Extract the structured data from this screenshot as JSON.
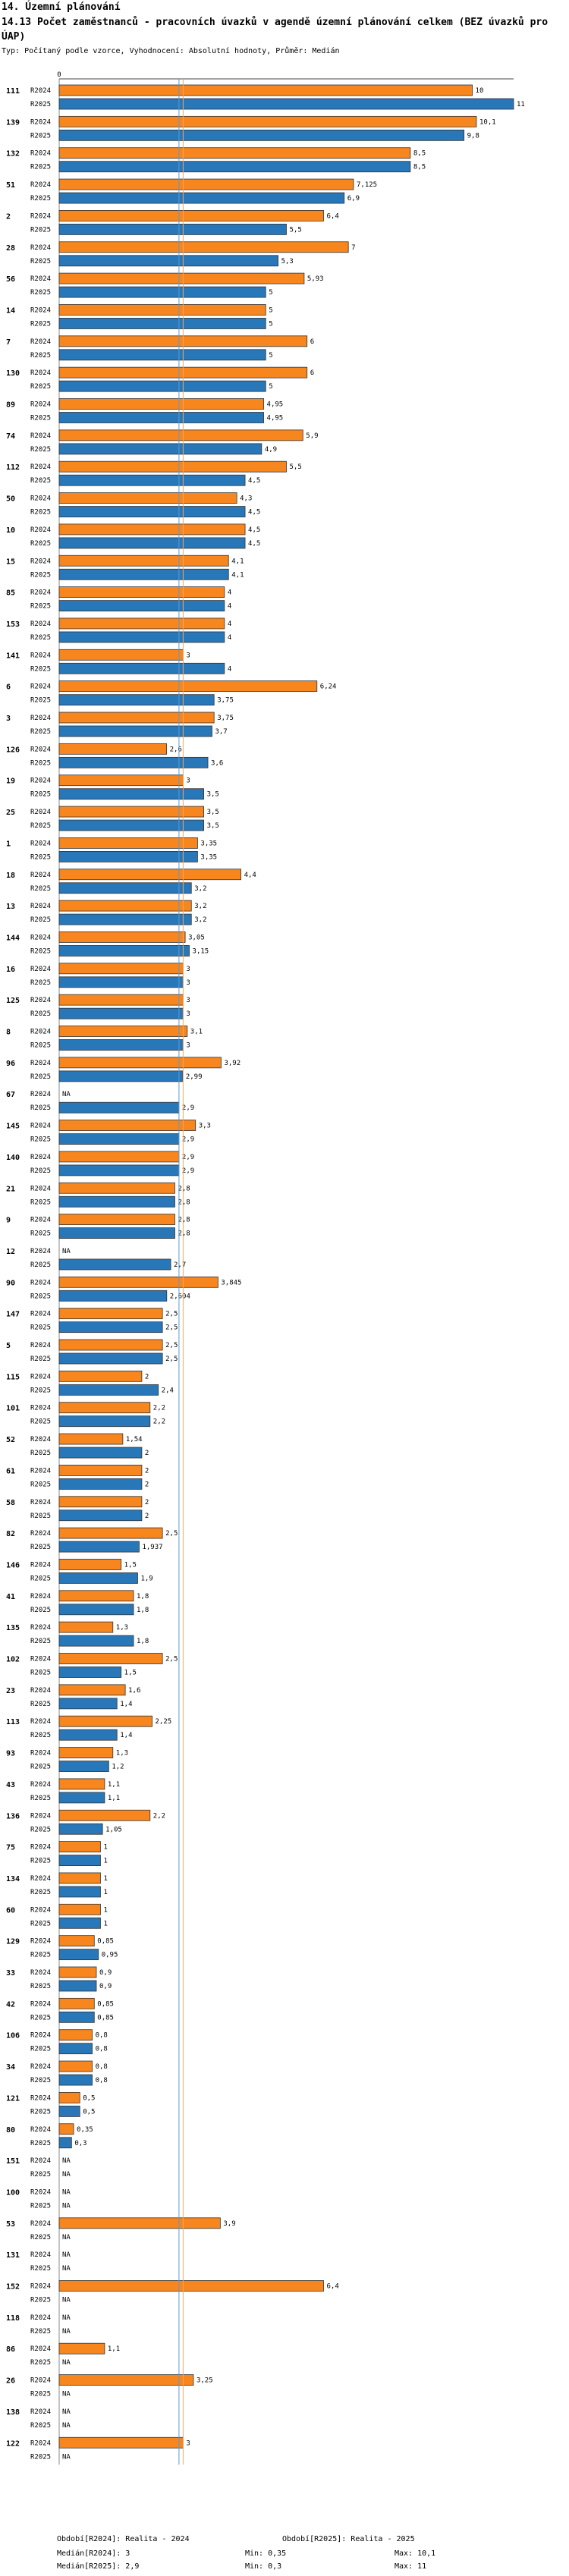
{
  "header": {
    "section": "14. Územní plánování",
    "title": "14.13 Počet zaměstnanců - pracovních úvazků v agendě územní plánování celkem (BEZ úvazků pro ÚAP)",
    "type_line": "Typ: Počítaný podle vzorce, Vyhodnocení: Absolutní hodnoty, Průměr: Medián"
  },
  "legend": {
    "r2024": "Období[R2024]: Realita - 2024",
    "r2025": "Období[R2025]: Realita - 2025"
  },
  "stats": {
    "median_2024": "Medián[R2024]: 3",
    "median_2025": "Medián[R2025]: 2,9",
    "min_2024": "Min: 0,35",
    "min_2025": "Min: 0,3",
    "max_2024": "Max: 10,1",
    "max_2025": "Max: 11"
  },
  "colors": {
    "r2024": "#f7861e",
    "r2025": "#2877b8",
    "median2024": "#f7a65a",
    "median2025": "#5b9bd5"
  },
  "chart_data": {
    "type": "bar",
    "orientation": "horizontal",
    "axis_min": 0,
    "axis_max": 11,
    "axis_tick_label": "0",
    "median_2024": 3,
    "median_2025": 2.9,
    "series_names": [
      "R2024",
      "R2025"
    ],
    "rows": [
      {
        "id": "111",
        "v2024": 10,
        "l2024": "10",
        "v2025": 11,
        "l2025": "11"
      },
      {
        "id": "139",
        "v2024": 10.1,
        "l2024": "10,1",
        "v2025": 9.8,
        "l2025": "9,8"
      },
      {
        "id": "132",
        "v2024": 8.5,
        "l2024": "8,5",
        "v2025": 8.5,
        "l2025": "8,5"
      },
      {
        "id": "51",
        "v2024": 7.125,
        "l2024": "7,125",
        "v2025": 6.9,
        "l2025": "6,9"
      },
      {
        "id": "2",
        "v2024": 6.4,
        "l2024": "6,4",
        "v2025": 5.5,
        "l2025": "5,5"
      },
      {
        "id": "28",
        "v2024": 7,
        "l2024": "7",
        "v2025": 5.3,
        "l2025": "5,3"
      },
      {
        "id": "56",
        "v2024": 5.93,
        "l2024": "5,93",
        "v2025": 5,
        "l2025": "5"
      },
      {
        "id": "14",
        "v2024": 5,
        "l2024": "5",
        "v2025": 5,
        "l2025": "5"
      },
      {
        "id": "7",
        "v2024": 6,
        "l2024": "6",
        "v2025": 5,
        "l2025": "5"
      },
      {
        "id": "130",
        "v2024": 6,
        "l2024": "6",
        "v2025": 5,
        "l2025": "5"
      },
      {
        "id": "89",
        "v2024": 4.95,
        "l2024": "4,95",
        "v2025": 4.95,
        "l2025": "4,95"
      },
      {
        "id": "74",
        "v2024": 5.9,
        "l2024": "5,9",
        "v2025": 4.9,
        "l2025": "4,9"
      },
      {
        "id": "112",
        "v2024": 5.5,
        "l2024": "5,5",
        "v2025": 4.5,
        "l2025": "4,5"
      },
      {
        "id": "50",
        "v2024": 4.3,
        "l2024": "4,3",
        "v2025": 4.5,
        "l2025": "4,5"
      },
      {
        "id": "10",
        "v2024": 4.5,
        "l2024": "4,5",
        "v2025": 4.5,
        "l2025": "4,5"
      },
      {
        "id": "15",
        "v2024": 4.1,
        "l2024": "4,1",
        "v2025": 4.1,
        "l2025": "4,1"
      },
      {
        "id": "85",
        "v2024": 4,
        "l2024": "4",
        "v2025": 4,
        "l2025": "4"
      },
      {
        "id": "153",
        "v2024": 4,
        "l2024": "4",
        "v2025": 4,
        "l2025": "4"
      },
      {
        "id": "141",
        "v2024": 3,
        "l2024": "3",
        "v2025": 4,
        "l2025": "4"
      },
      {
        "id": "6",
        "v2024": 6.24,
        "l2024": "6,24",
        "v2025": 3.75,
        "l2025": "3,75"
      },
      {
        "id": "3",
        "v2024": 3.75,
        "l2024": "3,75",
        "v2025": 3.7,
        "l2025": "3,7"
      },
      {
        "id": "126",
        "v2024": 2.6,
        "l2024": "2,6",
        "v2025": 3.6,
        "l2025": "3,6"
      },
      {
        "id": "19",
        "v2024": 3,
        "l2024": "3",
        "v2025": 3.5,
        "l2025": "3,5"
      },
      {
        "id": "25",
        "v2024": 3.5,
        "l2024": "3,5",
        "v2025": 3.5,
        "l2025": "3,5"
      },
      {
        "id": "1",
        "v2024": 3.35,
        "l2024": "3,35",
        "v2025": 3.35,
        "l2025": "3,35"
      },
      {
        "id": "18",
        "v2024": 4.4,
        "l2024": "4,4",
        "v2025": 3.2,
        "l2025": "3,2"
      },
      {
        "id": "13",
        "v2024": 3.2,
        "l2024": "3,2",
        "v2025": 3.2,
        "l2025": "3,2"
      },
      {
        "id": "144",
        "v2024": 3.05,
        "l2024": "3,05",
        "v2025": 3.15,
        "l2025": "3,15"
      },
      {
        "id": "16",
        "v2024": 3,
        "l2024": "3",
        "v2025": 3,
        "l2025": "3"
      },
      {
        "id": "125",
        "v2024": 3,
        "l2024": "3",
        "v2025": 3,
        "l2025": "3"
      },
      {
        "id": "8",
        "v2024": 3.1,
        "l2024": "3,1",
        "v2025": 3,
        "l2025": "3"
      },
      {
        "id": "96",
        "v2024": 3.92,
        "l2024": "3,92",
        "v2025": 2.99,
        "l2025": "2,99"
      },
      {
        "id": "67",
        "v2024": null,
        "l2024": "NA",
        "v2025": 2.9,
        "l2025": "2,9"
      },
      {
        "id": "145",
        "v2024": 3.3,
        "l2024": "3,3",
        "v2025": 2.9,
        "l2025": "2,9"
      },
      {
        "id": "140",
        "v2024": 2.9,
        "l2024": "2,9",
        "v2025": 2.9,
        "l2025": "2,9"
      },
      {
        "id": "21",
        "v2024": 2.8,
        "l2024": "2,8",
        "v2025": 2.8,
        "l2025": "2,8"
      },
      {
        "id": "9",
        "v2024": 2.8,
        "l2024": "2,8",
        "v2025": 2.8,
        "l2025": "2,8"
      },
      {
        "id": "12",
        "v2024": null,
        "l2024": "NA",
        "v2025": 2.7,
        "l2025": "2,7"
      },
      {
        "id": "90",
        "v2024": 3.845,
        "l2024": "3,845",
        "v2025": 2.604,
        "l2025": "2,604"
      },
      {
        "id": "147",
        "v2024": 2.5,
        "l2024": "2,5",
        "v2025": 2.5,
        "l2025": "2,5"
      },
      {
        "id": "5",
        "v2024": 2.5,
        "l2024": "2,5",
        "v2025": 2.5,
        "l2025": "2,5"
      },
      {
        "id": "115",
        "v2024": 2,
        "l2024": "2",
        "v2025": 2.4,
        "l2025": "2,4"
      },
      {
        "id": "101",
        "v2024": 2.2,
        "l2024": "2,2",
        "v2025": 2.2,
        "l2025": "2,2"
      },
      {
        "id": "52",
        "v2024": 1.54,
        "l2024": "1,54",
        "v2025": 2,
        "l2025": "2"
      },
      {
        "id": "61",
        "v2024": 2,
        "l2024": "2",
        "v2025": 2,
        "l2025": "2"
      },
      {
        "id": "58",
        "v2024": 2,
        "l2024": "2",
        "v2025": 2,
        "l2025": "2"
      },
      {
        "id": "82",
        "v2024": 2.5,
        "l2024": "2,5",
        "v2025": 1.937,
        "l2025": "1,937"
      },
      {
        "id": "146",
        "v2024": 1.5,
        "l2024": "1,5",
        "v2025": 1.9,
        "l2025": "1,9"
      },
      {
        "id": "41",
        "v2024": 1.8,
        "l2024": "1,8",
        "v2025": 1.8,
        "l2025": "1,8"
      },
      {
        "id": "135",
        "v2024": 1.3,
        "l2024": "1,3",
        "v2025": 1.8,
        "l2025": "1,8"
      },
      {
        "id": "102",
        "v2024": 2.5,
        "l2024": "2,5",
        "v2025": 1.5,
        "l2025": "1,5"
      },
      {
        "id": "23",
        "v2024": 1.6,
        "l2024": "1,6",
        "v2025": 1.4,
        "l2025": "1,4"
      },
      {
        "id": "113",
        "v2024": 2.25,
        "l2024": "2,25",
        "v2025": 1.4,
        "l2025": "1,4"
      },
      {
        "id": "93",
        "v2024": 1.3,
        "l2024": "1,3",
        "v2025": 1.2,
        "l2025": "1,2"
      },
      {
        "id": "43",
        "v2024": 1.1,
        "l2024": "1,1",
        "v2025": 1.1,
        "l2025": "1,1"
      },
      {
        "id": "136",
        "v2024": 2.2,
        "l2024": "2,2",
        "v2025": 1.05,
        "l2025": "1,05"
      },
      {
        "id": "75",
        "v2024": 1,
        "l2024": "1",
        "v2025": 1,
        "l2025": "1"
      },
      {
        "id": "134",
        "v2024": 1,
        "l2024": "1",
        "v2025": 1,
        "l2025": "1"
      },
      {
        "id": "60",
        "v2024": 1,
        "l2024": "1",
        "v2025": 1,
        "l2025": "1"
      },
      {
        "id": "129",
        "v2024": 0.85,
        "l2024": "0,85",
        "v2025": 0.95,
        "l2025": "0,95"
      },
      {
        "id": "33",
        "v2024": 0.9,
        "l2024": "0,9",
        "v2025": 0.9,
        "l2025": "0,9"
      },
      {
        "id": "42",
        "v2024": 0.85,
        "l2024": "0,85",
        "v2025": 0.85,
        "l2025": "0,85"
      },
      {
        "id": "106",
        "v2024": 0.8,
        "l2024": "0,8",
        "v2025": 0.8,
        "l2025": "0,8"
      },
      {
        "id": "34",
        "v2024": 0.8,
        "l2024": "0,8",
        "v2025": 0.8,
        "l2025": "0,8"
      },
      {
        "id": "121",
        "v2024": 0.5,
        "l2024": "0,5",
        "v2025": 0.5,
        "l2025": "0,5"
      },
      {
        "id": "80",
        "v2024": 0.35,
        "l2024": "0,35",
        "v2025": 0.3,
        "l2025": "0,3"
      },
      {
        "id": "151",
        "v2024": null,
        "l2024": "NA",
        "v2025": null,
        "l2025": "NA"
      },
      {
        "id": "100",
        "v2024": null,
        "l2024": "NA",
        "v2025": null,
        "l2025": "NA"
      },
      {
        "id": "53",
        "v2024": 3.9,
        "l2024": "3,9",
        "v2025": null,
        "l2025": "NA"
      },
      {
        "id": "131",
        "v2024": null,
        "l2024": "NA",
        "v2025": null,
        "l2025": "NA"
      },
      {
        "id": "152",
        "v2024": 6.4,
        "l2024": "6,4",
        "v2025": null,
        "l2025": "NA"
      },
      {
        "id": "118",
        "v2024": null,
        "l2024": "NA",
        "v2025": null,
        "l2025": "NA"
      },
      {
        "id": "86",
        "v2024": 1.1,
        "l2024": "1,1",
        "v2025": null,
        "l2025": "NA"
      },
      {
        "id": "26",
        "v2024": 3.25,
        "l2024": "3,25",
        "v2025": null,
        "l2025": "NA"
      },
      {
        "id": "138",
        "v2024": null,
        "l2024": "NA",
        "v2025": null,
        "l2025": "NA"
      },
      {
        "id": "122",
        "v2024": 3,
        "l2024": "3",
        "v2025": null,
        "l2025": "NA"
      }
    ]
  }
}
